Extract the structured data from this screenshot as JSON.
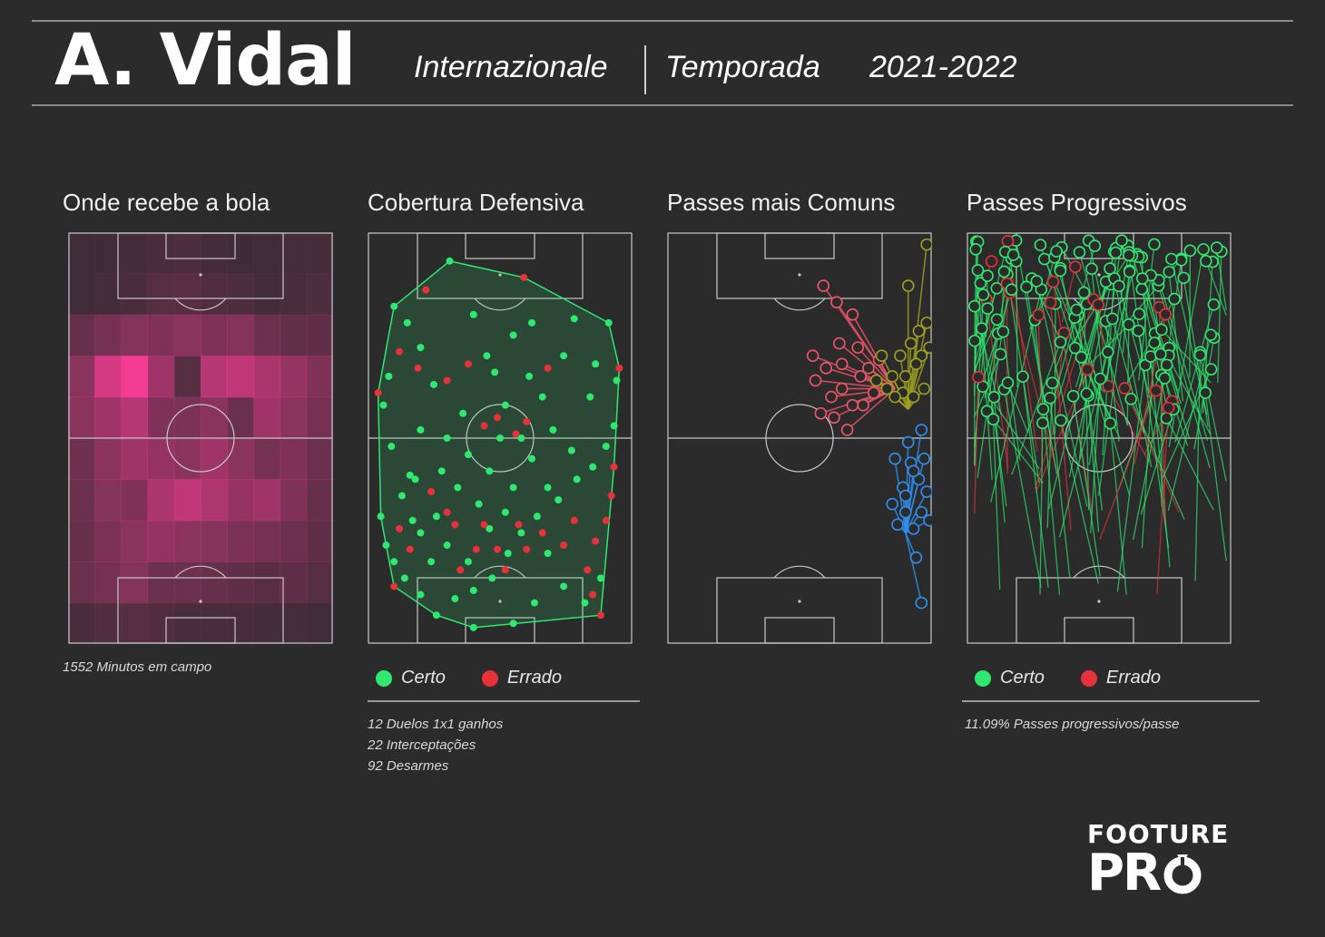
{
  "header": {
    "player": "A. Vidal",
    "team": "Internazionale",
    "season_label": "Temporada",
    "season": "2021-2022"
  },
  "colors": {
    "background": "#2b2b2b",
    "success": "#2ee86f",
    "fail": "#e8323a",
    "heat": "#ff3d9a",
    "cluster_red": "#f0556a",
    "cluster_olive": "#9ea020",
    "cluster_blue": "#2f8ff0"
  },
  "panels": {
    "heatmap": {
      "title": "Onde recebe a bola",
      "note": "1552 Minutos em campo"
    },
    "defensive": {
      "title": "Cobertura Defensiva",
      "legend": [
        "Certo",
        "Errado"
      ],
      "notes": [
        "12 Duelos 1x1 ganhos",
        "22 Interceptações",
        "92 Desarmes"
      ]
    },
    "common_passes": {
      "title": "Passes mais Comuns"
    },
    "progressive": {
      "title": "Passes Progressivos",
      "legend": [
        "Certo",
        "Errado"
      ],
      "notes": [
        "11.09% Passes progressivos/passe"
      ]
    }
  },
  "logo": {
    "line1": "FOOTURE",
    "line2": "PR"
  },
  "chart_data": [
    {
      "type": "heatmap",
      "title": "Onde recebe a bola",
      "grid": [
        [
          0.1,
          0.1,
          0.12,
          0.15,
          0.16,
          0.12,
          0.1,
          0.1,
          0.12,
          0.12
        ],
        [
          0.1,
          0.12,
          0.15,
          0.2,
          0.22,
          0.18,
          0.16,
          0.12,
          0.14,
          0.16
        ],
        [
          0.28,
          0.35,
          0.42,
          0.4,
          0.45,
          0.4,
          0.42,
          0.3,
          0.26,
          0.25
        ],
        [
          0.45,
          0.8,
          0.95,
          0.55,
          0.2,
          0.65,
          0.7,
          0.6,
          0.5,
          0.4
        ],
        [
          0.45,
          0.55,
          0.65,
          0.4,
          0.38,
          0.45,
          0.3,
          0.55,
          0.45,
          0.35
        ],
        [
          0.32,
          0.45,
          0.55,
          0.5,
          0.45,
          0.55,
          0.45,
          0.35,
          0.4,
          0.3
        ],
        [
          0.3,
          0.42,
          0.4,
          0.6,
          0.7,
          0.62,
          0.5,
          0.55,
          0.4,
          0.28
        ],
        [
          0.28,
          0.38,
          0.45,
          0.5,
          0.45,
          0.42,
          0.38,
          0.35,
          0.3,
          0.25
        ],
        [
          0.3,
          0.35,
          0.42,
          0.3,
          0.3,
          0.28,
          0.25,
          0.22,
          0.25,
          0.2
        ],
        [
          0.15,
          0.18,
          0.2,
          0.18,
          0.14,
          0.14,
          0.15,
          0.12,
          0.12,
          0.1
        ]
      ]
    },
    {
      "type": "scatter",
      "title": "Cobertura Defensiva",
      "series": [
        {
          "name": "Certo",
          "points": [
            [
              0.1,
              0.18
            ],
            [
              0.15,
              0.22
            ],
            [
              0.2,
              0.28
            ],
            [
              0.31,
              0.07
            ],
            [
              0.08,
              0.35
            ],
            [
              0.25,
              0.37
            ],
            [
              0.06,
              0.42
            ],
            [
              0.62,
              0.22
            ],
            [
              0.78,
              0.21
            ],
            [
              0.91,
              0.22
            ],
            [
              0.86,
              0.32
            ],
            [
              0.94,
              0.36
            ],
            [
              0.84,
              0.4
            ],
            [
              0.61,
              0.35
            ],
            [
              0.52,
              0.42
            ],
            [
              0.45,
              0.3
            ],
            [
              0.4,
              0.2
            ],
            [
              0.55,
              0.25
            ],
            [
              0.3,
              0.5
            ],
            [
              0.2,
              0.48
            ],
            [
              0.09,
              0.52
            ],
            [
              0.16,
              0.59
            ],
            [
              0.13,
              0.64
            ],
            [
              0.05,
              0.69
            ],
            [
              0.07,
              0.76
            ],
            [
              0.1,
              0.8
            ],
            [
              0.14,
              0.84
            ],
            [
              0.2,
              0.88
            ],
            [
              0.26,
              0.93
            ],
            [
              0.33,
              0.89
            ],
            [
              0.4,
              0.87
            ],
            [
              0.47,
              0.84
            ],
            [
              0.53,
              0.78
            ],
            [
              0.58,
              0.73
            ],
            [
              0.64,
              0.69
            ],
            [
              0.72,
              0.65
            ],
            [
              0.79,
              0.6
            ],
            [
              0.85,
              0.57
            ],
            [
              0.9,
              0.52
            ],
            [
              0.93,
              0.47
            ],
            [
              0.62,
              0.55
            ],
            [
              0.55,
              0.62
            ],
            [
              0.46,
              0.58
            ],
            [
              0.38,
              0.54
            ],
            [
              0.34,
              0.62
            ],
            [
              0.26,
              0.69
            ],
            [
              0.2,
              0.73
            ],
            [
              0.3,
              0.76
            ],
            [
              0.38,
              0.8
            ],
            [
              0.46,
              0.72
            ],
            [
              0.52,
              0.68
            ],
            [
              0.68,
              0.78
            ],
            [
              0.74,
              0.86
            ],
            [
              0.82,
              0.9
            ],
            [
              0.88,
              0.84
            ],
            [
              0.63,
              0.9
            ],
            [
              0.55,
              0.95
            ],
            [
              0.4,
              0.96
            ],
            [
              0.24,
              0.8
            ],
            [
              0.17,
              0.7
            ],
            [
              0.58,
              0.5
            ],
            [
              0.7,
              0.48
            ],
            [
              0.77,
              0.53
            ],
            [
              0.68,
              0.62
            ],
            [
              0.42,
              0.66
            ],
            [
              0.28,
              0.58
            ],
            [
              0.18,
              0.6
            ],
            [
              0.5,
              0.5
            ],
            [
              0.66,
              0.4
            ],
            [
              0.36,
              0.44
            ],
            [
              0.48,
              0.34
            ],
            [
              0.74,
              0.3
            ]
          ]
        },
        {
          "name": "Errado",
          "points": [
            [
              0.22,
              0.14
            ],
            [
              0.59,
              0.11
            ],
            [
              0.12,
              0.29
            ],
            [
              0.19,
              0.33
            ],
            [
              0.38,
              0.32
            ],
            [
              0.3,
              0.36
            ],
            [
              0.04,
              0.39
            ],
            [
              0.68,
              0.33
            ],
            [
              0.95,
              0.33
            ],
            [
              0.49,
              0.45
            ],
            [
              0.56,
              0.49
            ],
            [
              0.44,
              0.47
            ],
            [
              0.6,
              0.46
            ],
            [
              0.93,
              0.57
            ],
            [
              0.92,
              0.64
            ],
            [
              0.9,
              0.7
            ],
            [
              0.86,
              0.75
            ],
            [
              0.24,
              0.63
            ],
            [
              0.33,
              0.71
            ],
            [
              0.41,
              0.77
            ],
            [
              0.49,
              0.77
            ],
            [
              0.57,
              0.71
            ],
            [
              0.6,
              0.77
            ],
            [
              0.83,
              0.82
            ],
            [
              0.78,
              0.7
            ],
            [
              0.12,
              0.72
            ],
            [
              0.16,
              0.77
            ],
            [
              0.1,
              0.86
            ],
            [
              0.3,
              0.68
            ],
            [
              0.44,
              0.71
            ],
            [
              0.52,
              0.82
            ],
            [
              0.35,
              0.82
            ],
            [
              0.85,
              0.88
            ],
            [
              0.88,
              0.93
            ],
            [
              0.74,
              0.76
            ],
            [
              0.66,
              0.73
            ]
          ]
        }
      ]
    },
    {
      "type": "line",
      "title": "Passes mais Comuns",
      "series": [
        {
          "name": "",
          "points": [
            [
              0.59,
              0.13
            ],
            [
              0.64,
              0.17
            ],
            [
              0.55,
              0.3
            ],
            [
              0.7,
              0.2
            ],
            [
              0.72,
              0.28
            ],
            [
              0.6,
              0.33
            ],
            [
              0.66,
              0.38
            ],
            [
              0.7,
              0.42
            ],
            [
              0.63,
              0.45
            ],
            [
              0.58,
              0.44
            ],
            [
              0.68,
              0.48
            ],
            [
              0.76,
              0.33
            ],
            [
              0.78,
              0.39
            ],
            [
              0.65,
              0.27
            ],
            [
              0.74,
              0.42
            ],
            [
              0.62,
              0.4
            ],
            [
              0.56,
              0.36
            ],
            [
              0.8,
              0.31
            ],
            [
              0.73,
              0.35
            ],
            [
              0.66,
              0.32
            ]
          ]
        },
        {
          "name": "",
          "points": [
            [
              0.98,
              0.03
            ],
            [
              0.91,
              0.13
            ],
            [
              0.98,
              0.22
            ],
            [
              0.96,
              0.3
            ],
            [
              0.92,
              0.27
            ],
            [
              0.88,
              0.3
            ],
            [
              0.85,
              0.35
            ],
            [
              0.89,
              0.39
            ],
            [
              0.93,
              0.4
            ],
            [
              0.97,
              0.38
            ],
            [
              0.94,
              0.32
            ],
            [
              0.81,
              0.3
            ],
            [
              0.79,
              0.36
            ],
            [
              0.86,
              0.4
            ],
            [
              0.99,
              0.28
            ],
            [
              0.9,
              0.35
            ],
            [
              0.95,
              0.24
            ],
            [
              0.83,
              0.38
            ]
          ]
        },
        {
          "name": "",
          "points": [
            [
              0.96,
              0.48
            ],
            [
              0.91,
              0.51
            ],
            [
              0.86,
              0.55
            ],
            [
              0.92,
              0.56
            ],
            [
              0.95,
              0.6
            ],
            [
              0.89,
              0.62
            ],
            [
              0.85,
              0.66
            ],
            [
              0.9,
              0.68
            ],
            [
              0.96,
              0.68
            ],
            [
              0.99,
              0.7
            ],
            [
              0.93,
              0.72
            ],
            [
              0.87,
              0.71
            ],
            [
              0.98,
              0.63
            ],
            [
              0.94,
              0.79
            ],
            [
              0.96,
              0.9
            ],
            [
              0.9,
              0.64
            ],
            [
              0.93,
              0.58
            ],
            [
              0.97,
              0.55
            ]
          ]
        }
      ]
    },
    {
      "type": "line",
      "title": "Passes Progressivos",
      "series": [
        {
          "name": "Certo",
          "points_count_note": ""
        },
        {
          "name": "Errado",
          "points_count_note": ""
        }
      ]
    }
  ]
}
